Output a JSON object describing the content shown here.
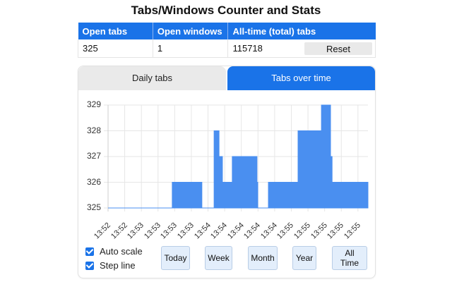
{
  "header": {
    "title": "Tabs/Windows Counter and Stats"
  },
  "stats": {
    "columns": [
      "Open tabs",
      "Open windows",
      "All-time (total) tabs"
    ],
    "values": {
      "open_tabs": "325",
      "open_windows": "1",
      "total_tabs": "115718"
    },
    "reset_label": "Reset"
  },
  "tabs": [
    {
      "label": "Daily tabs",
      "active": false
    },
    {
      "label": "Tabs over time",
      "active": true
    }
  ],
  "controls": {
    "auto_scale": {
      "label": "Auto scale",
      "checked": true
    },
    "step_line": {
      "label": "Step line",
      "checked": true
    },
    "range_buttons": [
      "Today",
      "Week",
      "Month",
      "Year",
      "All Time"
    ]
  },
  "colors": {
    "accent": "#1a73e8",
    "series": "#4a8ff0",
    "tab_inactive": "#eaeaea",
    "range_button": "#e3eefb"
  },
  "chart_data": {
    "type": "area",
    "step": true,
    "title": "",
    "xlabel": "",
    "ylabel": "",
    "ylim": [
      325,
      329
    ],
    "yticks": [
      325,
      326,
      327,
      328,
      329
    ],
    "xticks": [
      "13:52",
      "13:52",
      "13:53",
      "13:53",
      "13:53",
      "13:53",
      "13:54",
      "13:54",
      "13:54",
      "13:54",
      "13:54",
      "13:55",
      "13:55",
      "13:55",
      "13:55",
      "13:55"
    ],
    "grid": true,
    "legend": null,
    "series": [
      {
        "name": "Open tabs",
        "x_fraction": [
          0.0,
          0.247,
          0.361,
          0.408,
          0.427,
          0.44,
          0.478,
          0.573,
          0.576,
          0.617,
          0.731,
          0.821,
          0.856,
          0.862,
          1.0
        ],
        "values": [
          325,
          326,
          325,
          328,
          327,
          326,
          327,
          326,
          325,
          326,
          328,
          329,
          327,
          326,
          326
        ]
      }
    ]
  }
}
